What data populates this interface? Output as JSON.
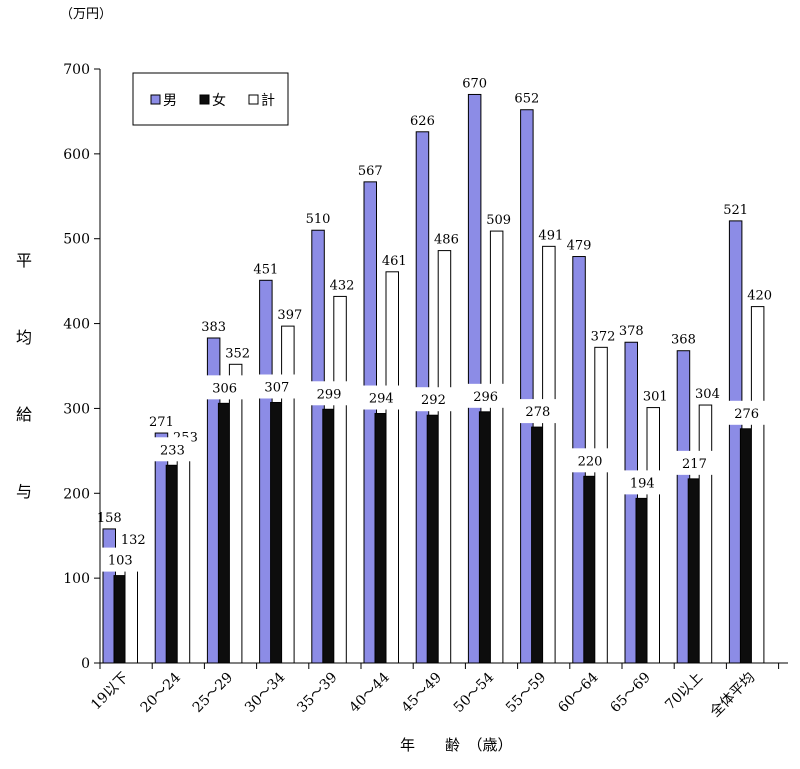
{
  "chart_data": {
    "type": "bar",
    "unit_label": "（万円）",
    "ylabel_chars": [
      "平",
      "均",
      "給",
      "与"
    ],
    "xlabel": "年　　齢　（歳）",
    "ylim": [
      0,
      700
    ],
    "yticks": [
      0,
      100,
      200,
      300,
      400,
      500,
      600,
      700
    ],
    "categories": [
      "19以下",
      "20～24",
      "25～29",
      "30～34",
      "35～39",
      "40～44",
      "45～49",
      "50～54",
      "55～59",
      "60～64",
      "65～69",
      "70以上",
      "全体平均"
    ],
    "series": [
      {
        "name": "男",
        "color": "#8c8ce6",
        "values": [
          158,
          271,
          383,
          451,
          510,
          567,
          626,
          670,
          652,
          479,
          378,
          368,
          521
        ]
      },
      {
        "name": "女",
        "color": "#0d0d0d",
        "values": [
          103,
          233,
          306,
          307,
          299,
          294,
          292,
          296,
          278,
          220,
          194,
          217,
          276
        ]
      },
      {
        "name": "計",
        "color": "#ffffff",
        "values": [
          132,
          253,
          352,
          397,
          432,
          461,
          486,
          509,
          491,
          372,
          301,
          304,
          420
        ]
      }
    ],
    "legend_position": "top-left"
  }
}
